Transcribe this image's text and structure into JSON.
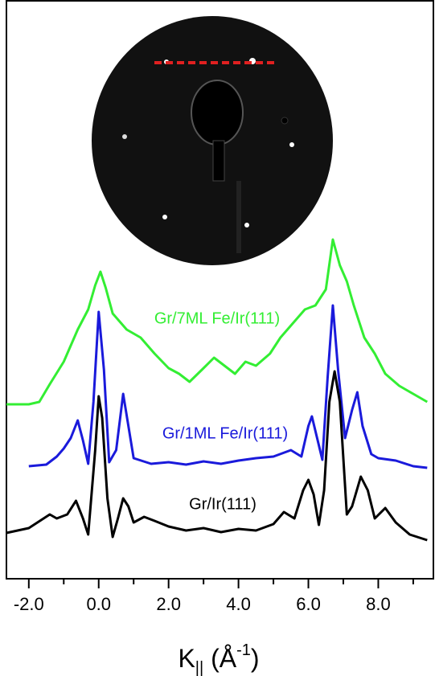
{
  "chart_data": {
    "type": "line",
    "xlabel_parts": [
      "K",
      "||",
      " (Å",
      "-1",
      ")"
    ],
    "xlim": [
      -2.64,
      9.6
    ],
    "ylim": [
      0,
      720
    ],
    "xticks": [
      {
        "value": -2,
        "label": "-2.0"
      },
      {
        "value": 0,
        "label": "0.0"
      },
      {
        "value": 2,
        "label": "2.0"
      },
      {
        "value": 4,
        "label": "4.0"
      },
      {
        "value": 6,
        "label": "6.0"
      },
      {
        "value": 8,
        "label": "8.0"
      }
    ],
    "xminorticks": [
      -1,
      1,
      3,
      5,
      7,
      9
    ],
    "series": [
      {
        "name": "Gr/7ML Fe/Ir(111)",
        "color": "#33ee33",
        "x": [
          -2.64,
          -2,
          -1.7,
          -1.4,
          -1,
          -0.6,
          -0.3,
          -0.1,
          0.05,
          0.2,
          0.4,
          0.8,
          1.2,
          1.6,
          2,
          2.3,
          2.6,
          3,
          3.3,
          3.6,
          3.9,
          4.2,
          4.5,
          4.9,
          5.2,
          5.6,
          5.9,
          6.2,
          6.5,
          6.7,
          6.9,
          7.1,
          7.3,
          7.6,
          7.9,
          8.2,
          8.6,
          9,
          9.4
        ],
        "values": [
          217,
          217,
          220,
          242,
          270,
          310,
          335,
          365,
          382,
          362,
          330,
          310,
          300,
          280,
          262,
          255,
          245,
          262,
          275,
          265,
          255,
          270,
          265,
          280,
          300,
          320,
          335,
          340,
          360,
          422,
          390,
          370,
          340,
          300,
          280,
          255,
          240,
          230,
          220
        ]
      },
      {
        "name": "Gr/1ML Fe/Ir(111)",
        "color": "#1a1adb",
        "x": [
          -2,
          -1.5,
          -1.2,
          -1,
          -0.8,
          -0.6,
          -0.45,
          -0.3,
          -0.15,
          0,
          0.15,
          0.3,
          0.5,
          0.7,
          0.85,
          1,
          1.5,
          2,
          2.5,
          3,
          3.5,
          4,
          4.5,
          5,
          5.5,
          5.8,
          6,
          6.1,
          6.25,
          6.4,
          6.55,
          6.7,
          6.85,
          7.05,
          7.25,
          7.4,
          7.55,
          7.8,
          8,
          8.5,
          9,
          9.4
        ],
        "values": [
          140,
          142,
          152,
          162,
          175,
          197,
          172,
          143,
          220,
          332,
          260,
          145,
          160,
          230,
          190,
          150,
          143,
          145,
          142,
          146,
          143,
          147,
          150,
          152,
          160,
          152,
          190,
          202,
          175,
          148,
          250,
          340,
          260,
          175,
          210,
          232,
          190,
          155,
          150,
          147,
          140,
          138
        ]
      },
      {
        "name": "Gr/Ir(111)",
        "color": "#000000",
        "x": [
          -2.64,
          -2,
          -1.4,
          -1.2,
          -0.9,
          -0.65,
          -0.45,
          -0.3,
          -0.1,
          0,
          0.1,
          0.25,
          0.4,
          0.55,
          0.7,
          0.85,
          1,
          1.3,
          1.6,
          2,
          2.5,
          3,
          3.5,
          4,
          4.5,
          5,
          5.3,
          5.6,
          5.85,
          6,
          6.15,
          6.3,
          6.45,
          6.6,
          6.75,
          6.9,
          7.1,
          7.25,
          7.5,
          7.7,
          7.9,
          8.2,
          8.5,
          8.9,
          9.4
        ],
        "values": [
          57,
          63,
          80,
          75,
          80,
          97,
          75,
          55,
          160,
          227,
          200,
          100,
          52,
          75,
          100,
          90,
          70,
          77,
          72,
          65,
          60,
          63,
          58,
          62,
          60,
          68,
          83,
          75,
          110,
          123,
          105,
          67,
          110,
          220,
          258,
          220,
          80,
          90,
          127,
          110,
          75,
          88,
          70,
          55,
          48
        ]
      }
    ]
  }
}
